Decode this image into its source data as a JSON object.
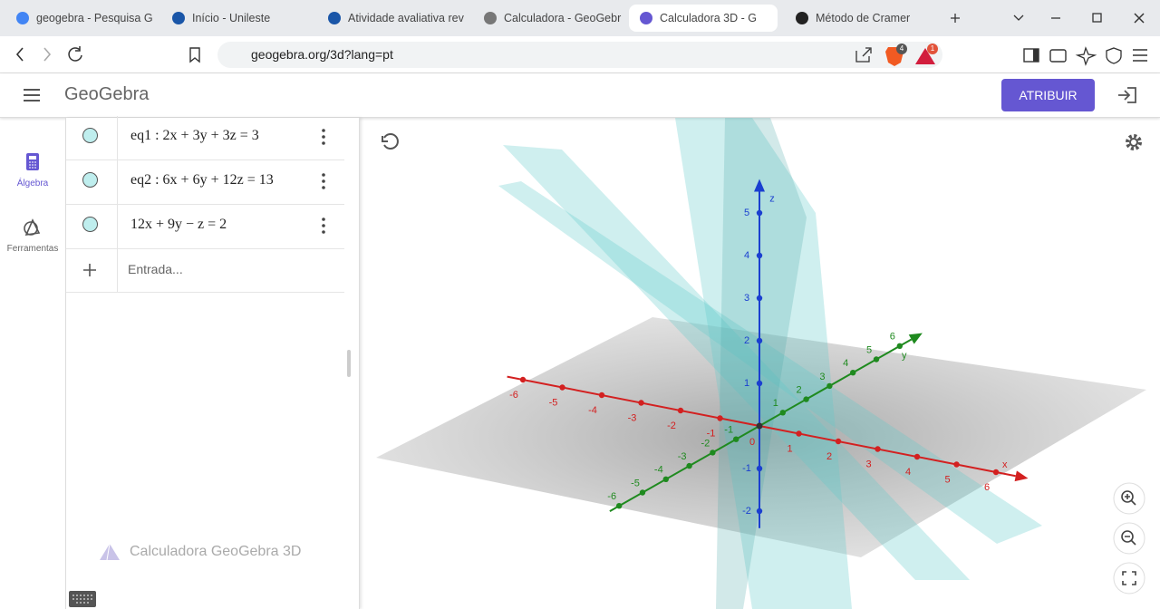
{
  "browser": {
    "tabs": [
      "geogebra - Pesquisa G",
      "Início - Unileste",
      "Atividade avaliativa rev",
      "Calculadora - GeoGebr",
      "Calculadora 3D - G",
      "Método de Cramer"
    ],
    "active_tab": 4,
    "url": "geogebra.org/3d?lang=pt",
    "badges": [
      "4",
      "1"
    ]
  },
  "app": {
    "logo": "GeoGebra",
    "assign_button": "ATRIBUIR",
    "sidebar": [
      "Álgebra",
      "Ferramentas"
    ],
    "algebra": {
      "rows": [
        "eq1 : 2x + 3y + 3z = 3",
        "eq2 : 6x + 6y + 12z = 13",
        "12x + 9y − z = 2"
      ],
      "input_placeholder": "Entrada...",
      "footer": "Calculadora GeoGebra 3D"
    }
  },
  "graphics": {
    "x_axis_label": "x",
    "y_axis_label": "y",
    "z_axis_label": "z",
    "origin_label": "0",
    "x_ticks": [
      -6,
      -5,
      -4,
      -3,
      -2,
      -1,
      1,
      2,
      3,
      4,
      5,
      6
    ],
    "y_ticks": [
      -6,
      -5,
      -4,
      -3,
      -2,
      -1,
      1,
      2,
      3,
      4,
      5,
      6
    ],
    "z_ticks": [
      -2,
      -1,
      1,
      2,
      3,
      4,
      5
    ]
  }
}
